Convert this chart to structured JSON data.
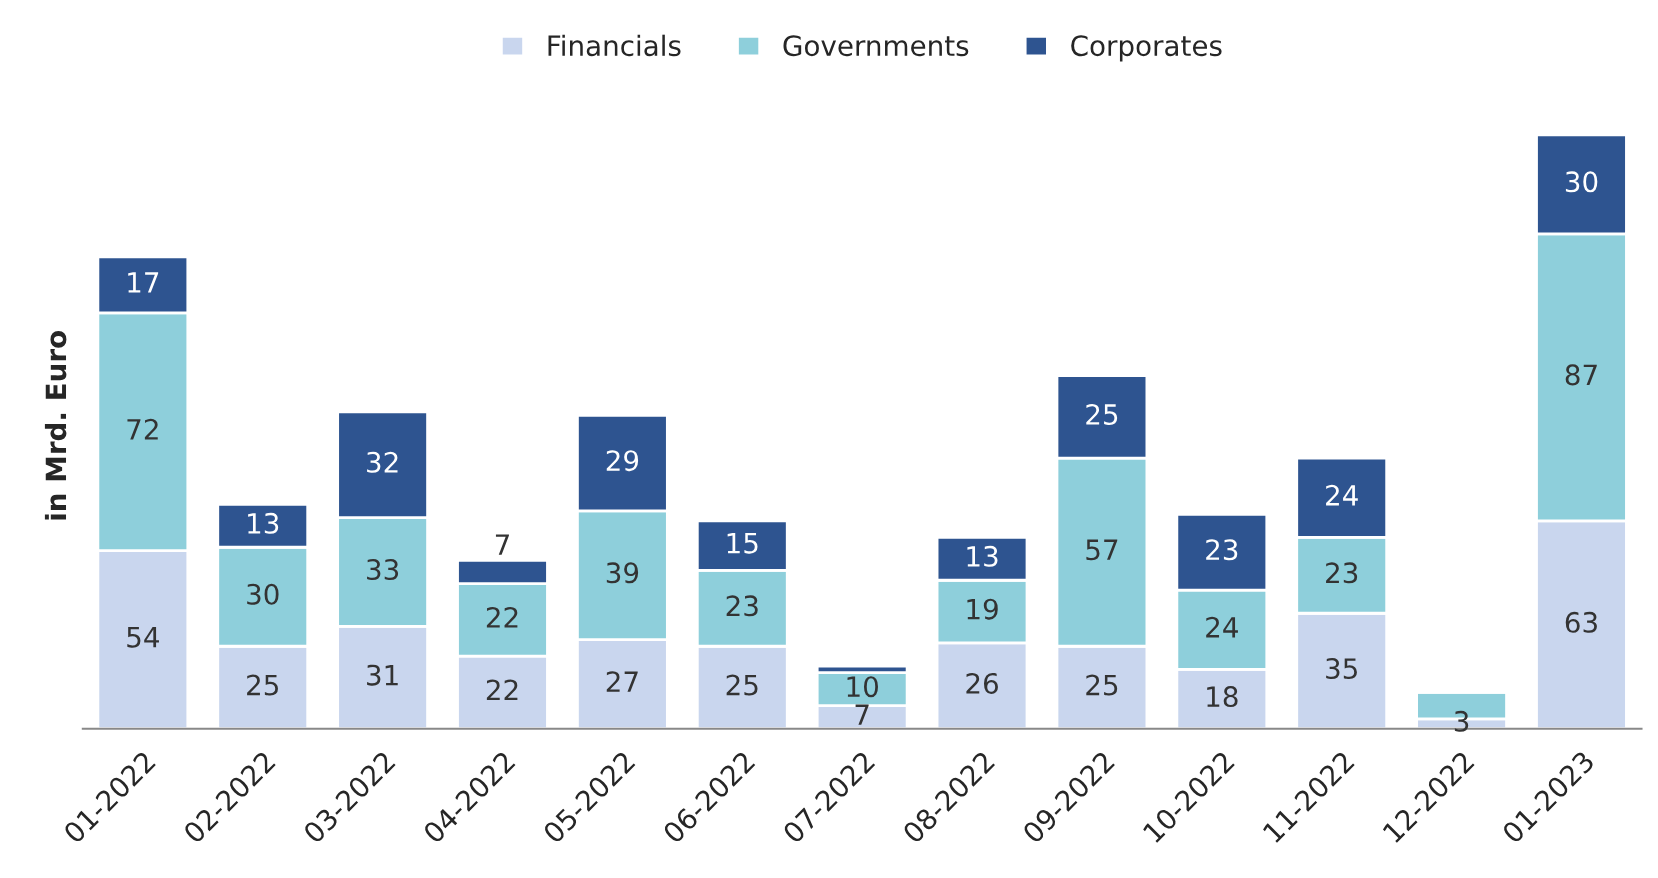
{
  "chart_data": {
    "type": "bar",
    "stacked": true,
    "ylabel": "in Mrd. Euro",
    "legend": "top",
    "tick_labels": "x",
    "categories": [
      "01-2022",
      "02-2022",
      "03-2022",
      "04-2022",
      "05-2022",
      "06-2022",
      "07-2022",
      "08-2022",
      "09-2022",
      "10-2022",
      "11-2022",
      "12-2022",
      "01-2023"
    ],
    "series": [
      {
        "name": "Financials",
        "color": "#c9d6ee",
        "values": [
          54,
          25,
          31,
          22,
          27,
          25,
          7,
          26,
          25,
          18,
          35,
          3,
          63
        ],
        "value_labels": [
          "54",
          "25",
          "31",
          "22",
          "27",
          "25",
          "7",
          "26",
          "25",
          "18",
          "35",
          "3",
          "63"
        ]
      },
      {
        "name": "Governments",
        "color": "#8ecfdb",
        "values": [
          72,
          30,
          33,
          22,
          39,
          23,
          10,
          19,
          57,
          24,
          23,
          8,
          87
        ],
        "value_labels": [
          "72",
          "30",
          "33",
          "22",
          "39",
          "23",
          "10",
          "19",
          "57",
          "24",
          "23",
          null,
          "87"
        ]
      },
      {
        "name": "Corporates",
        "color": "#2e5490",
        "values": [
          17,
          13,
          32,
          7,
          29,
          15,
          2,
          13,
          25,
          23,
          24,
          null,
          30
        ],
        "value_labels": [
          "17",
          "13",
          "32",
          "7",
          "29",
          "15",
          null,
          "13",
          "25",
          "23",
          "24",
          null,
          "30"
        ]
      }
    ]
  }
}
